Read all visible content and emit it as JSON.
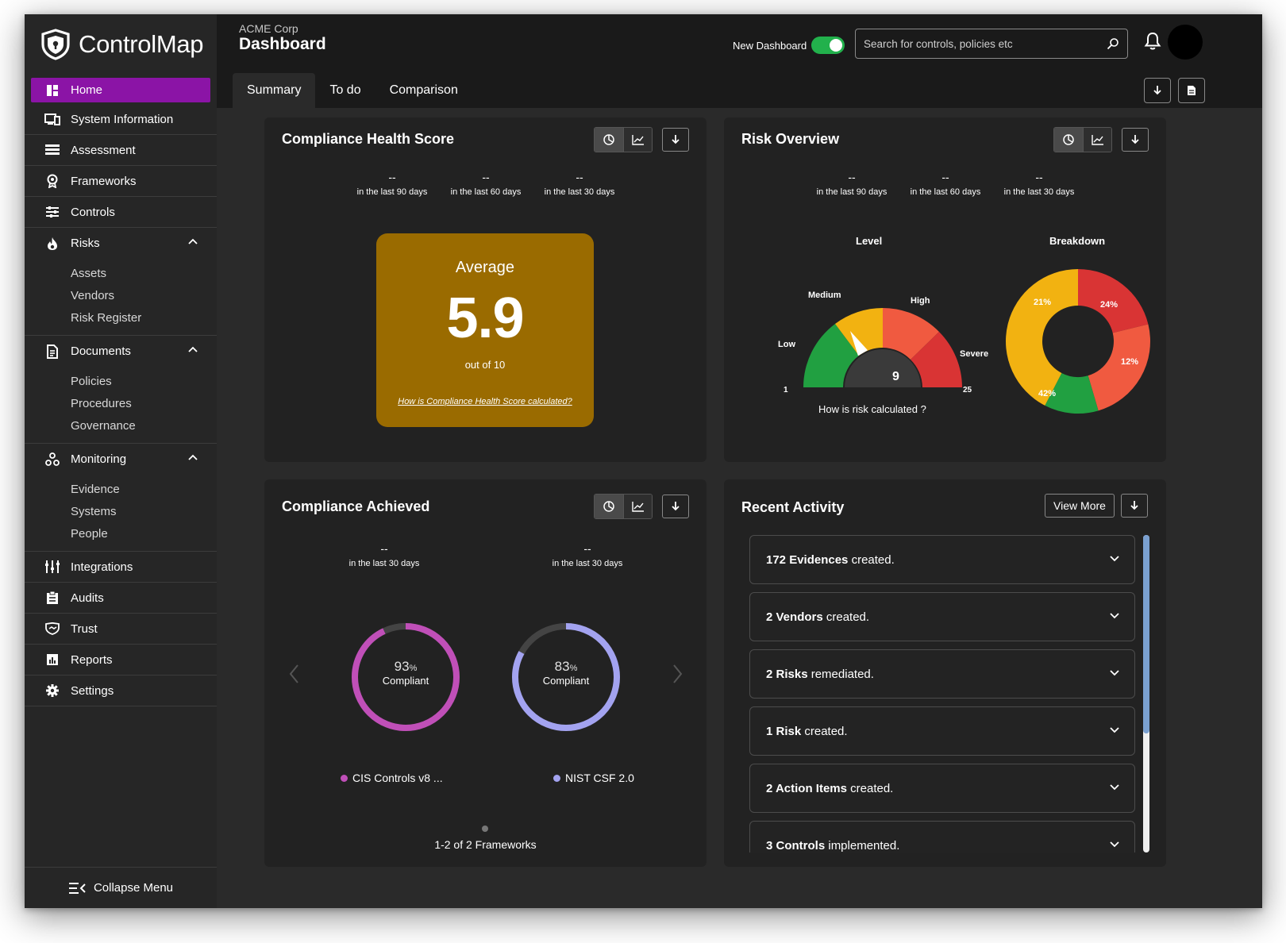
{
  "brand": {
    "name": "ControlMap"
  },
  "header": {
    "org": "ACME Corp",
    "title": "Dashboard",
    "new_dashboard_label": "New Dashboard",
    "new_dashboard_on": true,
    "search_placeholder": "Search for controls, policies etc"
  },
  "tabs": [
    "Summary",
    "To do",
    "Comparison"
  ],
  "sidebar": {
    "items": [
      {
        "label": "Home",
        "icon": "home-icon"
      },
      {
        "label": "System Information",
        "icon": "system-info-icon"
      },
      {
        "label": "Assessment",
        "icon": "assessment-icon"
      },
      {
        "label": "Frameworks",
        "icon": "frameworks-icon"
      },
      {
        "label": "Controls",
        "icon": "controls-icon"
      },
      {
        "label": "Risks",
        "icon": "risks-icon",
        "children": [
          "Assets",
          "Vendors",
          "Risk Register"
        ]
      },
      {
        "label": "Documents",
        "icon": "documents-icon",
        "children": [
          "Policies",
          "Procedures",
          "Governance"
        ]
      },
      {
        "label": "Monitoring",
        "icon": "monitoring-icon",
        "children": [
          "Evidence",
          "Systems",
          "People"
        ]
      },
      {
        "label": "Integrations",
        "icon": "integrations-icon"
      },
      {
        "label": "Audits",
        "icon": "audits-icon"
      },
      {
        "label": "Trust",
        "icon": "trust-icon"
      },
      {
        "label": "Reports",
        "icon": "reports-icon"
      },
      {
        "label": "Settings",
        "icon": "settings-icon"
      }
    ],
    "collapse_label": "Collapse Menu"
  },
  "health": {
    "title": "Compliance Health Score",
    "stats": [
      {
        "value": "--",
        "label": "in the last 90 days"
      },
      {
        "value": "--",
        "label": "in the last 60 days"
      },
      {
        "value": "--",
        "label": "in the last 30 days"
      }
    ],
    "avg_label": "Average",
    "avg_value": "5.9",
    "avg_out_of": "out of 10",
    "avg_link": "How is Compliance Health Score calculated?",
    "avg_color": "#9a6b00"
  },
  "risk": {
    "title": "Risk Overview",
    "stats": [
      {
        "value": "--",
        "label": "in the last 90 days"
      },
      {
        "value": "--",
        "label": "in the last 60 days"
      },
      {
        "value": "--",
        "label": "in the last 30 days"
      }
    ],
    "level_label": "Level",
    "breakdown_label": "Breakdown",
    "gauge": {
      "low": "Low",
      "medium": "Medium",
      "high": "High",
      "severe": "Severe",
      "min": "1",
      "max": "25",
      "value": "9",
      "value_num": 9
    },
    "how_label": "How is risk calculated ?",
    "breakdown": [
      {
        "label": "21%",
        "value": 21,
        "color": "#d93434"
      },
      {
        "label": "24%",
        "value": 24,
        "color": "#f05a40"
      },
      {
        "label": "12%",
        "value": 12,
        "color": "#21a041"
      },
      {
        "label": "42%",
        "value": 42,
        "color": "#f2b211"
      }
    ]
  },
  "achieved": {
    "title": "Compliance Achieved",
    "stats": [
      {
        "value": "--",
        "label": "in the last 30 days"
      },
      {
        "value": "--",
        "label": "in the last 30 days"
      }
    ],
    "frameworks": [
      {
        "percent": "93",
        "unit": "%",
        "label": "Compliant",
        "name": "CIS Controls v8 ...",
        "color": "#c04fb8",
        "value": 93
      },
      {
        "percent": "83",
        "unit": "%",
        "label": "Compliant",
        "name": "NIST CSF 2.0",
        "color": "#a3a3f0",
        "value": 83
      }
    ],
    "pager": "1-2 of 2 Frameworks"
  },
  "activity": {
    "title": "Recent Activity",
    "view_more": "View More",
    "items": [
      {
        "bold": "172 Evidences",
        "rest": " created."
      },
      {
        "bold": "2 Vendors",
        "rest": " created."
      },
      {
        "bold": "2 Risks",
        "rest": " remediated."
      },
      {
        "bold": "1 Risk",
        "rest": " created."
      },
      {
        "bold": "2 Action Items",
        "rest": " created."
      },
      {
        "bold": "3 Controls",
        "rest": " implemented."
      }
    ]
  },
  "colors": {
    "accent": "#8b14a6",
    "toggle": "#22b14c"
  }
}
